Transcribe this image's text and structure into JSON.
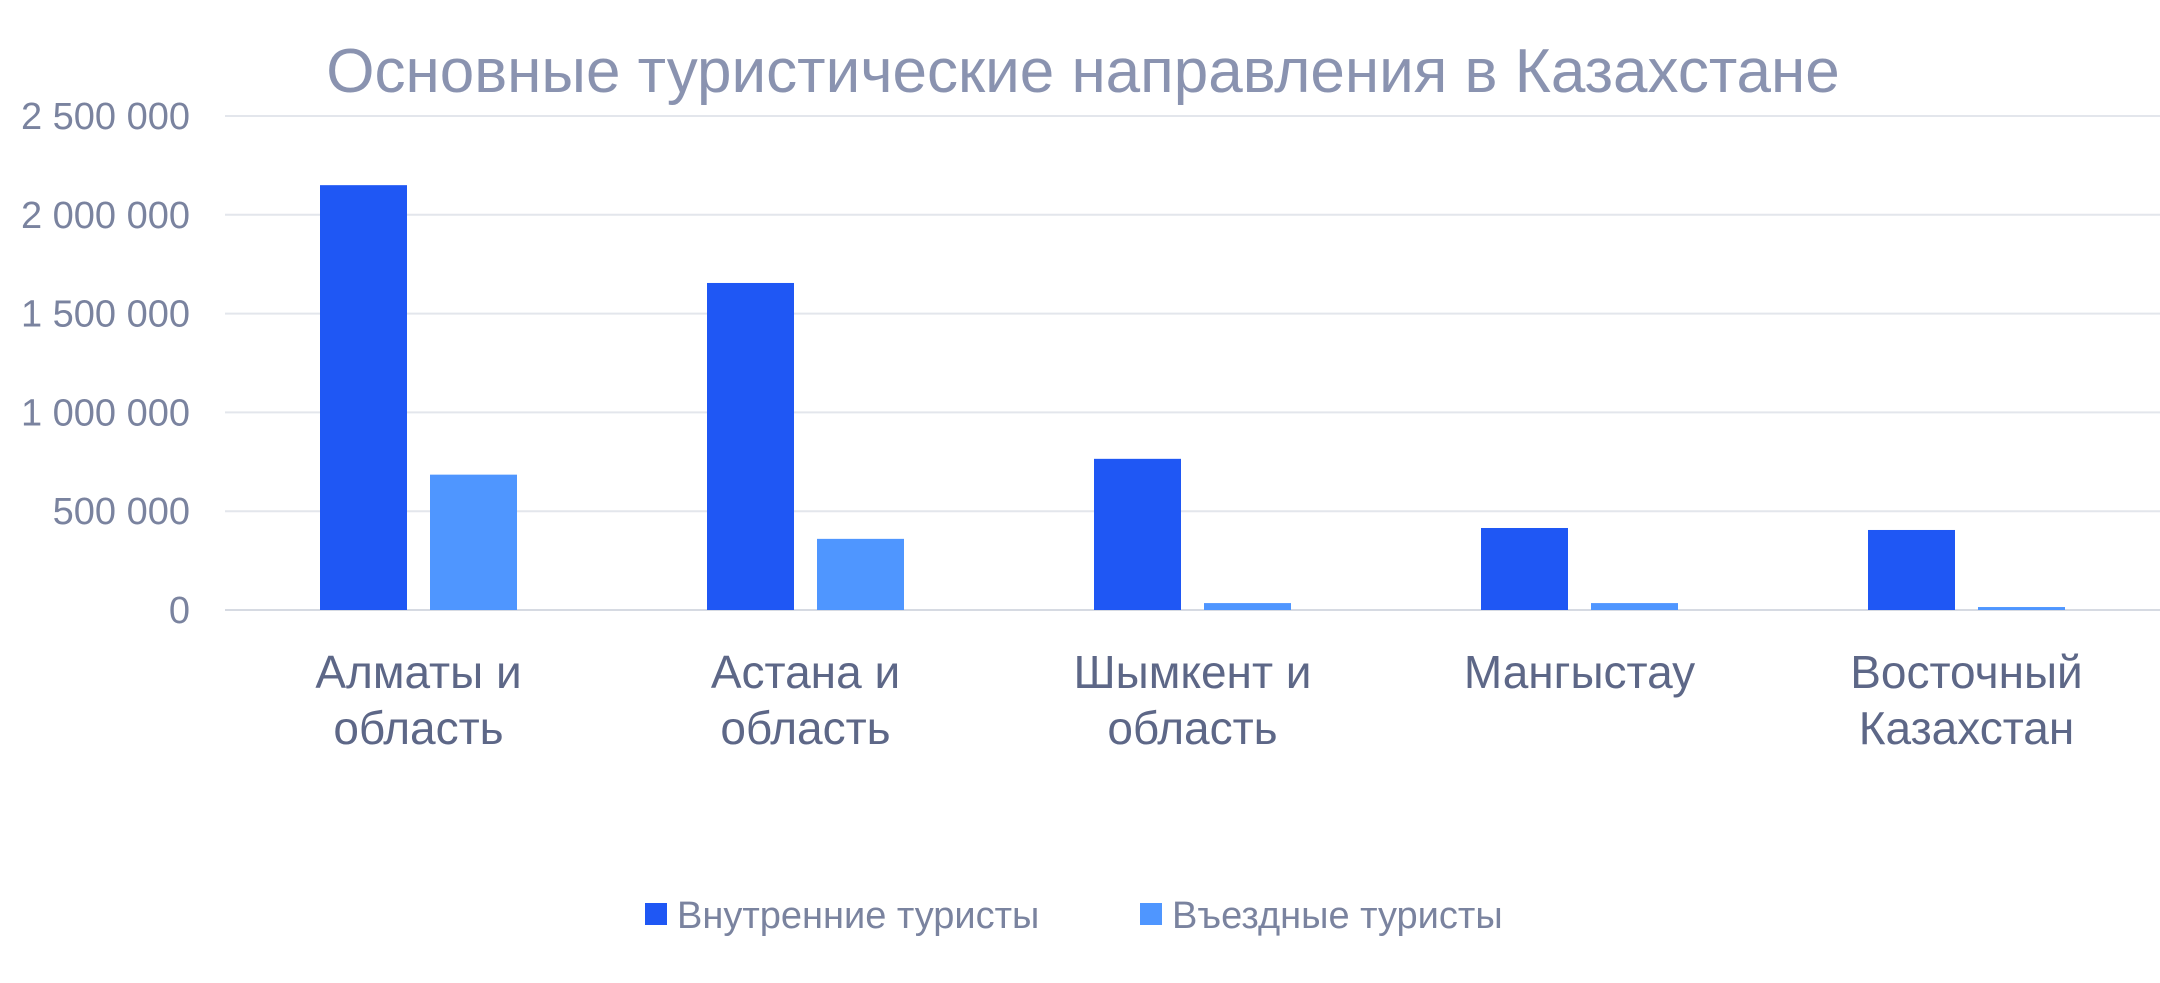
{
  "chart_data": {
    "type": "bar",
    "title": "Основные туристические направления в Казахстане",
    "xlabel": "",
    "ylabel": "",
    "ylim": [
      0,
      2500000
    ],
    "yticks": [
      0,
      500000,
      1000000,
      1500000,
      2000000,
      2500000
    ],
    "ytick_labels": [
      "0",
      "500 000",
      "1 000 000",
      "1 500 000",
      "2 000 000",
      "2 500 000"
    ],
    "grid": true,
    "legend_position": "bottom",
    "categories": [
      [
        "Алматы и",
        "область"
      ],
      [
        "Астана и",
        "область"
      ],
      [
        "Шымкент и",
        "область"
      ],
      [
        "Мангыстау"
      ],
      [
        "Восточный",
        "Казахстан"
      ]
    ],
    "series": [
      {
        "name": "Внутренние туристы",
        "color": "#1f57f4",
        "values": [
          2150000,
          1655000,
          765000,
          415000,
          405000
        ]
      },
      {
        "name": "Въездные туристы",
        "color": "#4f96ff",
        "values": [
          685000,
          360000,
          35000,
          35000,
          15000
        ]
      }
    ]
  }
}
